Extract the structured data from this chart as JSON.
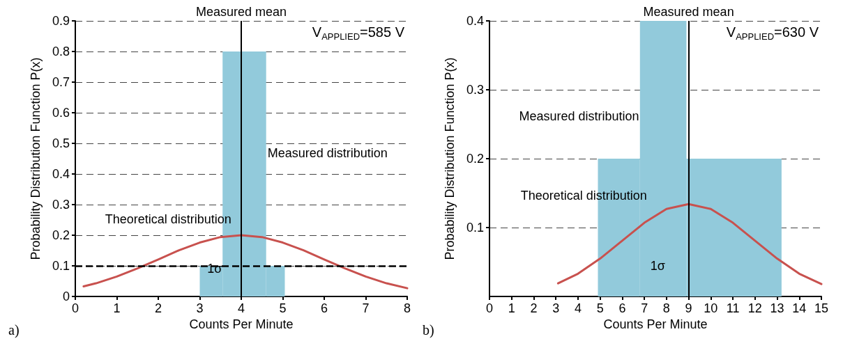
{
  "chart_data": [
    {
      "type": "histogram",
      "title": "V$_{APPLIED}$=585 V",
      "xlabel": "Counts Per Minute",
      "ylabel": "Probability Distribution Function P(x)",
      "bins": [
        3,
        3.55,
        4.6,
        5.05
      ],
      "values": [
        0.1,
        0.8,
        0.1
      ],
      "color": "#92cadb",
      "series": [
        {
          "type": "line",
          "color": "#c8514e",
          "x": [
            0.2,
            0.5,
            1,
            1.5,
            2,
            2.5,
            3,
            3.5,
            4,
            4.5,
            5,
            5.5,
            6,
            6.5,
            7,
            7.5,
            8
          ],
          "values": [
            0.033,
            0.043,
            0.065,
            0.092,
            0.121,
            0.151,
            0.176,
            0.194,
            0.2,
            0.194,
            0.176,
            0.151,
            0.121,
            0.092,
            0.065,
            0.043,
            0.027
          ]
        }
      ],
      "xlim": [
        0,
        8
      ],
      "xticks": [
        0,
        1,
        2,
        3,
        4,
        5,
        6,
        7,
        8
      ],
      "ylim": [
        0,
        0.9
      ],
      "yticks": [
        0,
        0.1,
        0.2,
        0.3,
        0.4,
        0.5,
        0.6,
        0.7,
        0.8,
        0.9
      ],
      "grid": "y",
      "ref_lines": [
        {
          "axis": "x",
          "value": 4,
          "label": "Measured mean"
        },
        {
          "axis": "y",
          "value": 0.1,
          "line_style": "dashed"
        }
      ],
      "annotations": [
        "a)",
        "Measured distribution",
        "Theoretical distribution",
        "1σ"
      ]
    },
    {
      "type": "histogram",
      "title": "V$_{APPLIED}$=630 V",
      "xlabel": "Counts Per Minute",
      "ylabel": "Probability Distribution Function P(x)",
      "bins": [
        4.9,
        6.8,
        8.9,
        13.2
      ],
      "values": [
        0.2,
        0.4,
        0.2
      ],
      "color": "#92cadb",
      "series": [
        {
          "type": "line",
          "color": "#c8514e",
          "x": [
            3.1,
            4,
            5,
            6,
            7,
            8,
            9,
            10,
            11,
            12,
            13,
            14,
            15
          ],
          "values": [
            0.019,
            0.033,
            0.055,
            0.081,
            0.107,
            0.127,
            0.134,
            0.127,
            0.107,
            0.081,
            0.055,
            0.033,
            0.018
          ]
        }
      ],
      "xlim": [
        0,
        15
      ],
      "xticks": [
        0,
        1,
        2,
        3,
        4,
        5,
        6,
        7,
        8,
        9,
        10,
        11,
        12,
        13,
        14,
        15
      ],
      "ylim": [
        0,
        0.4
      ],
      "yticks": [
        0.1,
        0.2,
        0.3,
        0.4
      ],
      "grid": "y",
      "ref_lines": [
        {
          "axis": "x",
          "value": 9,
          "label": "Measured mean"
        }
      ],
      "annotations": [
        "b)",
        "Measured distribution",
        "Theoretical distribution",
        "1σ"
      ]
    }
  ]
}
